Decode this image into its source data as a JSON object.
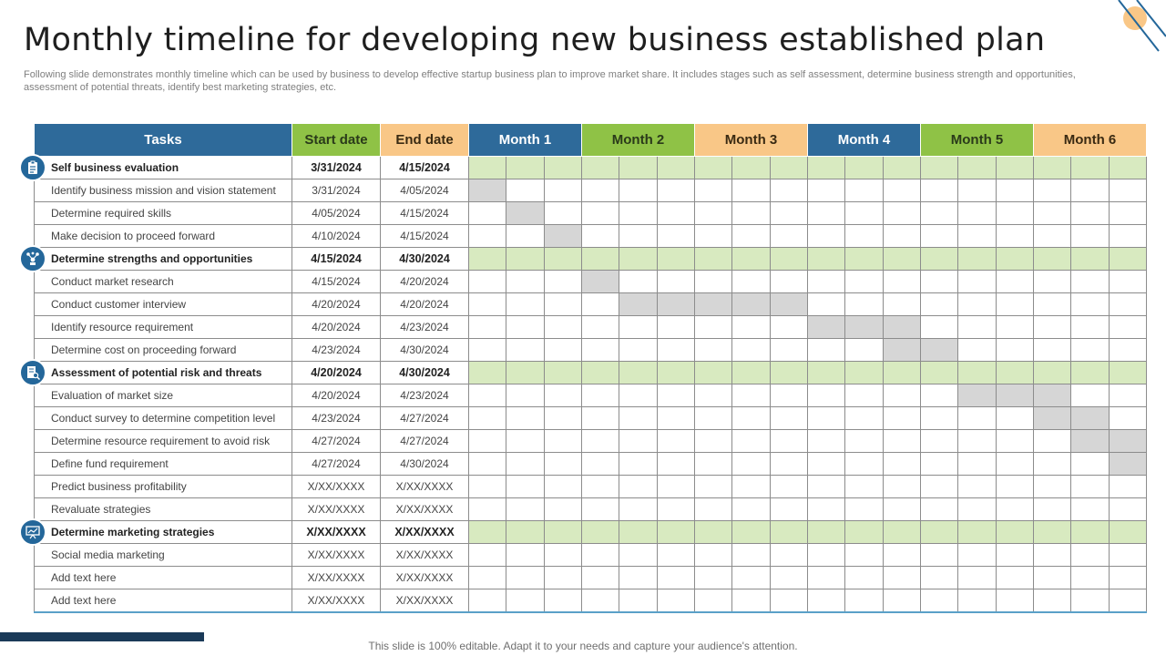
{
  "title": "Monthly timeline for developing new business established plan",
  "subtitle": "Following slide demonstrates monthly timeline which can be used by business to develop effective  startup business plan to improve market share. It includes stages such as self assessment, determine business strength and opportunities, assessment of potential threats, identify best marketing strategies, etc.",
  "footer": "This slide is 100% editable. Adapt it to your needs and capture your audience's attention.",
  "header": {
    "tasks": "Tasks",
    "start": "Start date",
    "end": "End date",
    "months": [
      "Month 1",
      "Month 2",
      "Month 3",
      "Month 4",
      "Month 5",
      "Month 6"
    ]
  },
  "colors": {
    "blue": "#2e6a9a",
    "green": "#8fc246",
    "orange": "#f9c787",
    "phase_fill": "#d8eac0",
    "task_fill": "#d6d6d6"
  },
  "phase_icons": [
    "clipboard-icon",
    "network-icon",
    "document-search-icon",
    "presentation-icon"
  ],
  "rows": [
    {
      "task": "Self business evaluation",
      "start": "3/31/2024",
      "end": "4/15/2024",
      "phase": true,
      "icon": "clipboard-icon"
    },
    {
      "task": "Identify business mission and vision statement",
      "start": "3/31/2024",
      "end": "4/05/2024",
      "span": [
        0,
        0
      ]
    },
    {
      "task": "Determine required skills",
      "start": "4/05/2024",
      "end": "4/15/2024",
      "span": [
        1,
        1
      ]
    },
    {
      "task": "Make  decision to proceed forward",
      "start": "4/10/2024",
      "end": "4/15/2024",
      "span": [
        2,
        2
      ]
    },
    {
      "task": "Determine strengths and opportunities",
      "start": "4/15/2024",
      "end": "4/30/2024",
      "phase": true,
      "icon": "network-icon"
    },
    {
      "task": "Conduct market research",
      "start": "4/15/2024",
      "end": "4/20/2024",
      "span": [
        3,
        3
      ]
    },
    {
      "task": "Conduct customer interview",
      "start": "4/20/2024",
      "end": "4/20/2024",
      "span": [
        4,
        8
      ]
    },
    {
      "task": "Identify resource requirement",
      "start": "4/20/2024",
      "end": "4/23/2024",
      "span": [
        9,
        11
      ]
    },
    {
      "task": "Determine cost on proceeding forward",
      "start": "4/23/2024",
      "end": "4/30/2024",
      "span": [
        11,
        12
      ]
    },
    {
      "task": "Assessment  of potential risk and threats",
      "start": "4/20/2024",
      "end": "4/30/2024",
      "phase": true,
      "icon": "document-search-icon"
    },
    {
      "task": "Evaluation of market size",
      "start": "4/20/2024",
      "end": "4/23/2024",
      "span": [
        13,
        15
      ]
    },
    {
      "task": "Conduct survey to determine competition level",
      "start": "4/23/2024",
      "end": "4/27/2024",
      "span": [
        15,
        16
      ]
    },
    {
      "task": "Determine resource requirement to avoid risk",
      "start": "4/27/2024",
      "end": "4/27/2024",
      "span": [
        16,
        17
      ]
    },
    {
      "task": "Define fund requirement",
      "start": "4/27/2024",
      "end": "4/30/2024",
      "span": [
        17,
        17
      ]
    },
    {
      "task": "Predict business profitability",
      "start": "X/XX/XXXX",
      "end": "X/XX/XXXX"
    },
    {
      "task": "Revaluate strategies",
      "start": "X/XX/XXXX",
      "end": "X/XX/XXXX"
    },
    {
      "task": "Determine marketing strategies",
      "start": "X/XX/XXXX",
      "end": "X/XX/XXXX",
      "phase": true,
      "icon": "presentation-icon"
    },
    {
      "task": "Social media marketing",
      "start": "X/XX/XXXX",
      "end": "X/XX/XXXX"
    },
    {
      "task": "Add text here",
      "start": "X/XX/XXXX",
      "end": "X/XX/XXXX"
    },
    {
      "task": "Add text here",
      "start": "X/XX/XXXX",
      "end": "X/XX/XXXX"
    }
  ]
}
